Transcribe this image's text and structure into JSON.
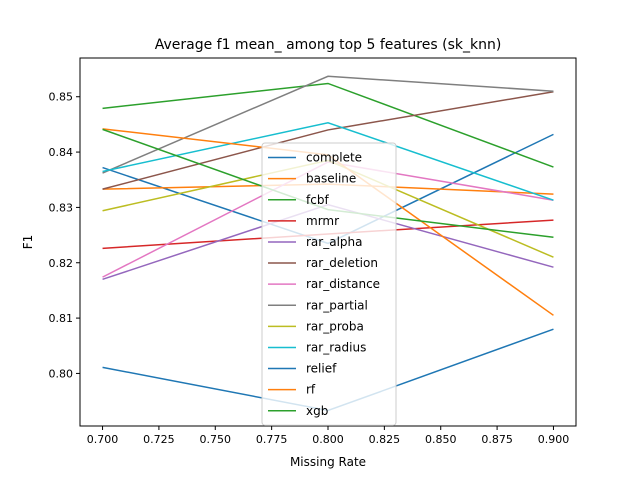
{
  "chart_data": {
    "type": "line",
    "title": "Average f1 mean_ among top 5 features (sk_knn)",
    "xlabel": "Missing Rate",
    "ylabel": "F1",
    "x": [
      0.7,
      0.8,
      0.9
    ],
    "xlim": [
      0.69,
      0.91
    ],
    "ylim": [
      0.7905,
      0.857
    ],
    "xticks": [
      0.7,
      0.725,
      0.75,
      0.775,
      0.8,
      0.825,
      0.85,
      0.875,
      0.9
    ],
    "xtick_labels": [
      "0.700",
      "0.725",
      "0.750",
      "0.775",
      "0.800",
      "0.825",
      "0.850",
      "0.875",
      "0.900"
    ],
    "yticks": [
      0.8,
      0.81,
      0.82,
      0.83,
      0.84,
      0.85
    ],
    "ytick_labels": [
      "0.80",
      "0.81",
      "0.82",
      "0.83",
      "0.84",
      "0.85"
    ],
    "grid": false,
    "legend_position": "center",
    "series": [
      {
        "name": "complete",
        "color": "#1f77b4",
        "values": [
          0.8372,
          0.8235,
          0.8432
        ]
      },
      {
        "name": "baseline",
        "color": "#ff7f0e",
        "values": [
          0.8333,
          0.8342,
          0.8324
        ]
      },
      {
        "name": "fcbf",
        "color": "#2ca02c",
        "values": [
          0.8479,
          0.8524,
          0.8373
        ]
      },
      {
        "name": "mrmr",
        "color": "#d62728",
        "values": [
          0.8226,
          0.8252,
          0.8277
        ]
      },
      {
        "name": "rar_alpha",
        "color": "#9467bd",
        "values": [
          0.817,
          0.8305,
          0.8192
        ]
      },
      {
        "name": "rar_deletion",
        "color": "#8c564b",
        "values": [
          0.8333,
          0.844,
          0.8509
        ]
      },
      {
        "name": "rar_distance",
        "color": "#e377c2",
        "values": [
          0.8174,
          0.8382,
          0.8313
        ]
      },
      {
        "name": "rar_partial",
        "color": "#7f7f7f",
        "values": [
          0.8362,
          0.8537,
          0.851
        ]
      },
      {
        "name": "rar_proba",
        "color": "#bcbd22",
        "values": [
          0.8294,
          0.8385,
          0.821
        ]
      },
      {
        "name": "rar_radius",
        "color": "#17becf",
        "values": [
          0.8365,
          0.8453,
          0.8313
        ]
      },
      {
        "name": "relief",
        "color": "#1f77b4",
        "values": [
          0.8011,
          0.7933,
          0.808
        ]
      },
      {
        "name": "rf",
        "color": "#ff7f0e",
        "values": [
          0.8442,
          0.8395,
          0.8105
        ]
      },
      {
        "name": "xgb",
        "color": "#2ca02c",
        "values": [
          0.8441,
          0.8296,
          0.8246
        ]
      }
    ]
  }
}
